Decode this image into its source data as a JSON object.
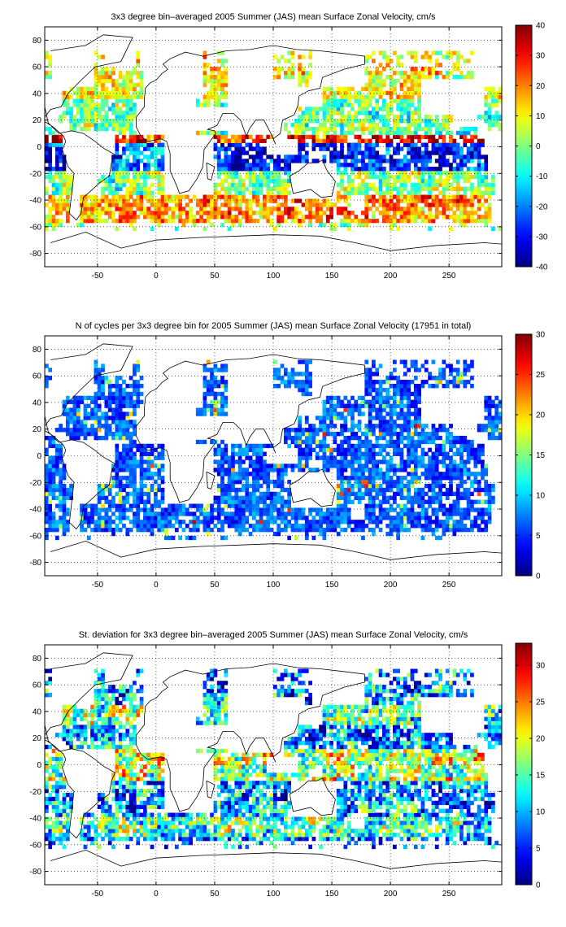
{
  "chart_data": [
    {
      "type": "heatmap",
      "title": "3x3 degree bin–averaged 2005 Summer (JAS) mean Surface Zonal Velocity, cm/s",
      "xlim": [
        -95,
        295
      ],
      "ylim": [
        -90,
        90
      ],
      "x_ticks": [
        -50,
        0,
        50,
        100,
        150,
        200,
        250
      ],
      "y_ticks": [
        -80,
        -60,
        -40,
        -20,
        0,
        20,
        40,
        60,
        80
      ],
      "grid": true,
      "bin_size_deg": 3,
      "colorbar": {
        "min": -40,
        "max": 40,
        "ticks": [
          -40,
          -30,
          -20,
          -10,
          0,
          10,
          20,
          30,
          40
        ]
      },
      "colormap": "jet"
    },
    {
      "type": "heatmap",
      "title": "N of cycles per 3x3 degree bin for 2005 Summer (JAS) mean Surface Zonal Velocity (17951 in total)",
      "xlim": [
        -95,
        295
      ],
      "ylim": [
        -90,
        90
      ],
      "x_ticks": [
        -50,
        0,
        50,
        100,
        150,
        200,
        250
      ],
      "y_ticks": [
        -80,
        -60,
        -40,
        -20,
        0,
        20,
        40,
        60,
        80
      ],
      "grid": true,
      "bin_size_deg": 3,
      "total_cycles": 17951,
      "colorbar": {
        "min": 0,
        "max": 30,
        "ticks": [
          0,
          5,
          10,
          15,
          20,
          25,
          30
        ]
      },
      "colormap": "jet"
    },
    {
      "type": "heatmap",
      "title": "St. deviation for 3x3 degree bin–averaged 2005 Summer (JAS) mean Surface Zonal Velocity, cm/s",
      "xlim": [
        -95,
        295
      ],
      "ylim": [
        -90,
        90
      ],
      "x_ticks": [
        -50,
        0,
        50,
        100,
        150,
        200,
        250
      ],
      "y_ticks": [
        -80,
        -60,
        -40,
        -20,
        0,
        20,
        40,
        60,
        80
      ],
      "grid": true,
      "bin_size_deg": 3,
      "colorbar": {
        "min": 0,
        "max": 33,
        "ticks": [
          0,
          5,
          10,
          15,
          20,
          25,
          30
        ]
      },
      "colormap": "jet"
    }
  ]
}
